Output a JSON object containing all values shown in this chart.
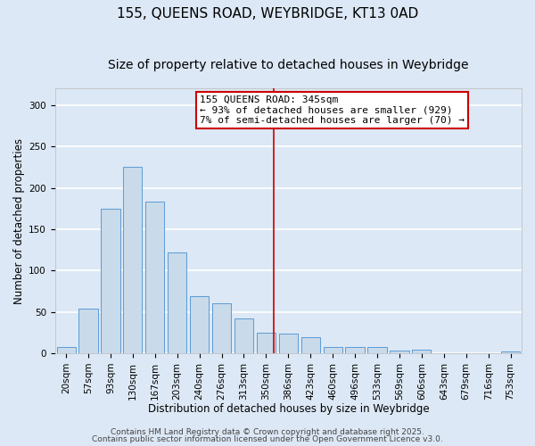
{
  "title1": "155, QUEENS ROAD, WEYBRIDGE, KT13 0AD",
  "title2": "Size of property relative to detached houses in Weybridge",
  "xlabel": "Distribution of detached houses by size in Weybridge",
  "ylabel": "Number of detached properties",
  "categories": [
    "20sqm",
    "57sqm",
    "93sqm",
    "130sqm",
    "167sqm",
    "203sqm",
    "240sqm",
    "276sqm",
    "313sqm",
    "350sqm",
    "386sqm",
    "423sqm",
    "460sqm",
    "496sqm",
    "533sqm",
    "569sqm",
    "606sqm",
    "643sqm",
    "679sqm",
    "716sqm",
    "753sqm"
  ],
  "values": [
    7,
    54,
    175,
    225,
    183,
    122,
    69,
    60,
    42,
    25,
    24,
    19,
    7,
    8,
    7,
    3,
    4,
    0,
    0,
    0,
    2
  ],
  "bar_color": "#c9daea",
  "bar_edge_color": "#5b9bd5",
  "ylim": [
    0,
    320
  ],
  "yticks": [
    0,
    50,
    100,
    150,
    200,
    250,
    300
  ],
  "vline_x_index": 9.35,
  "vline_color": "#cc0000",
  "annotation_text": "155 QUEENS ROAD: 345sqm\n← 93% of detached houses are smaller (929)\n7% of semi-detached houses are larger (70) →",
  "annotation_box_color": "#ffffff",
  "annotation_box_edge": "#cc0000",
  "footer_line1": "Contains HM Land Registry data © Crown copyright and database right 2025.",
  "footer_line2": "Contains public sector information licensed under the Open Government Licence v3.0.",
  "background_color": "#dce8f5",
  "plot_background": "#dce8f5",
  "grid_color": "#ffffff",
  "title_fontsize": 11,
  "subtitle_fontsize": 10,
  "axis_label_fontsize": 8.5,
  "tick_fontsize": 7.5,
  "footer_fontsize": 6.5,
  "ann_fontsize": 8
}
